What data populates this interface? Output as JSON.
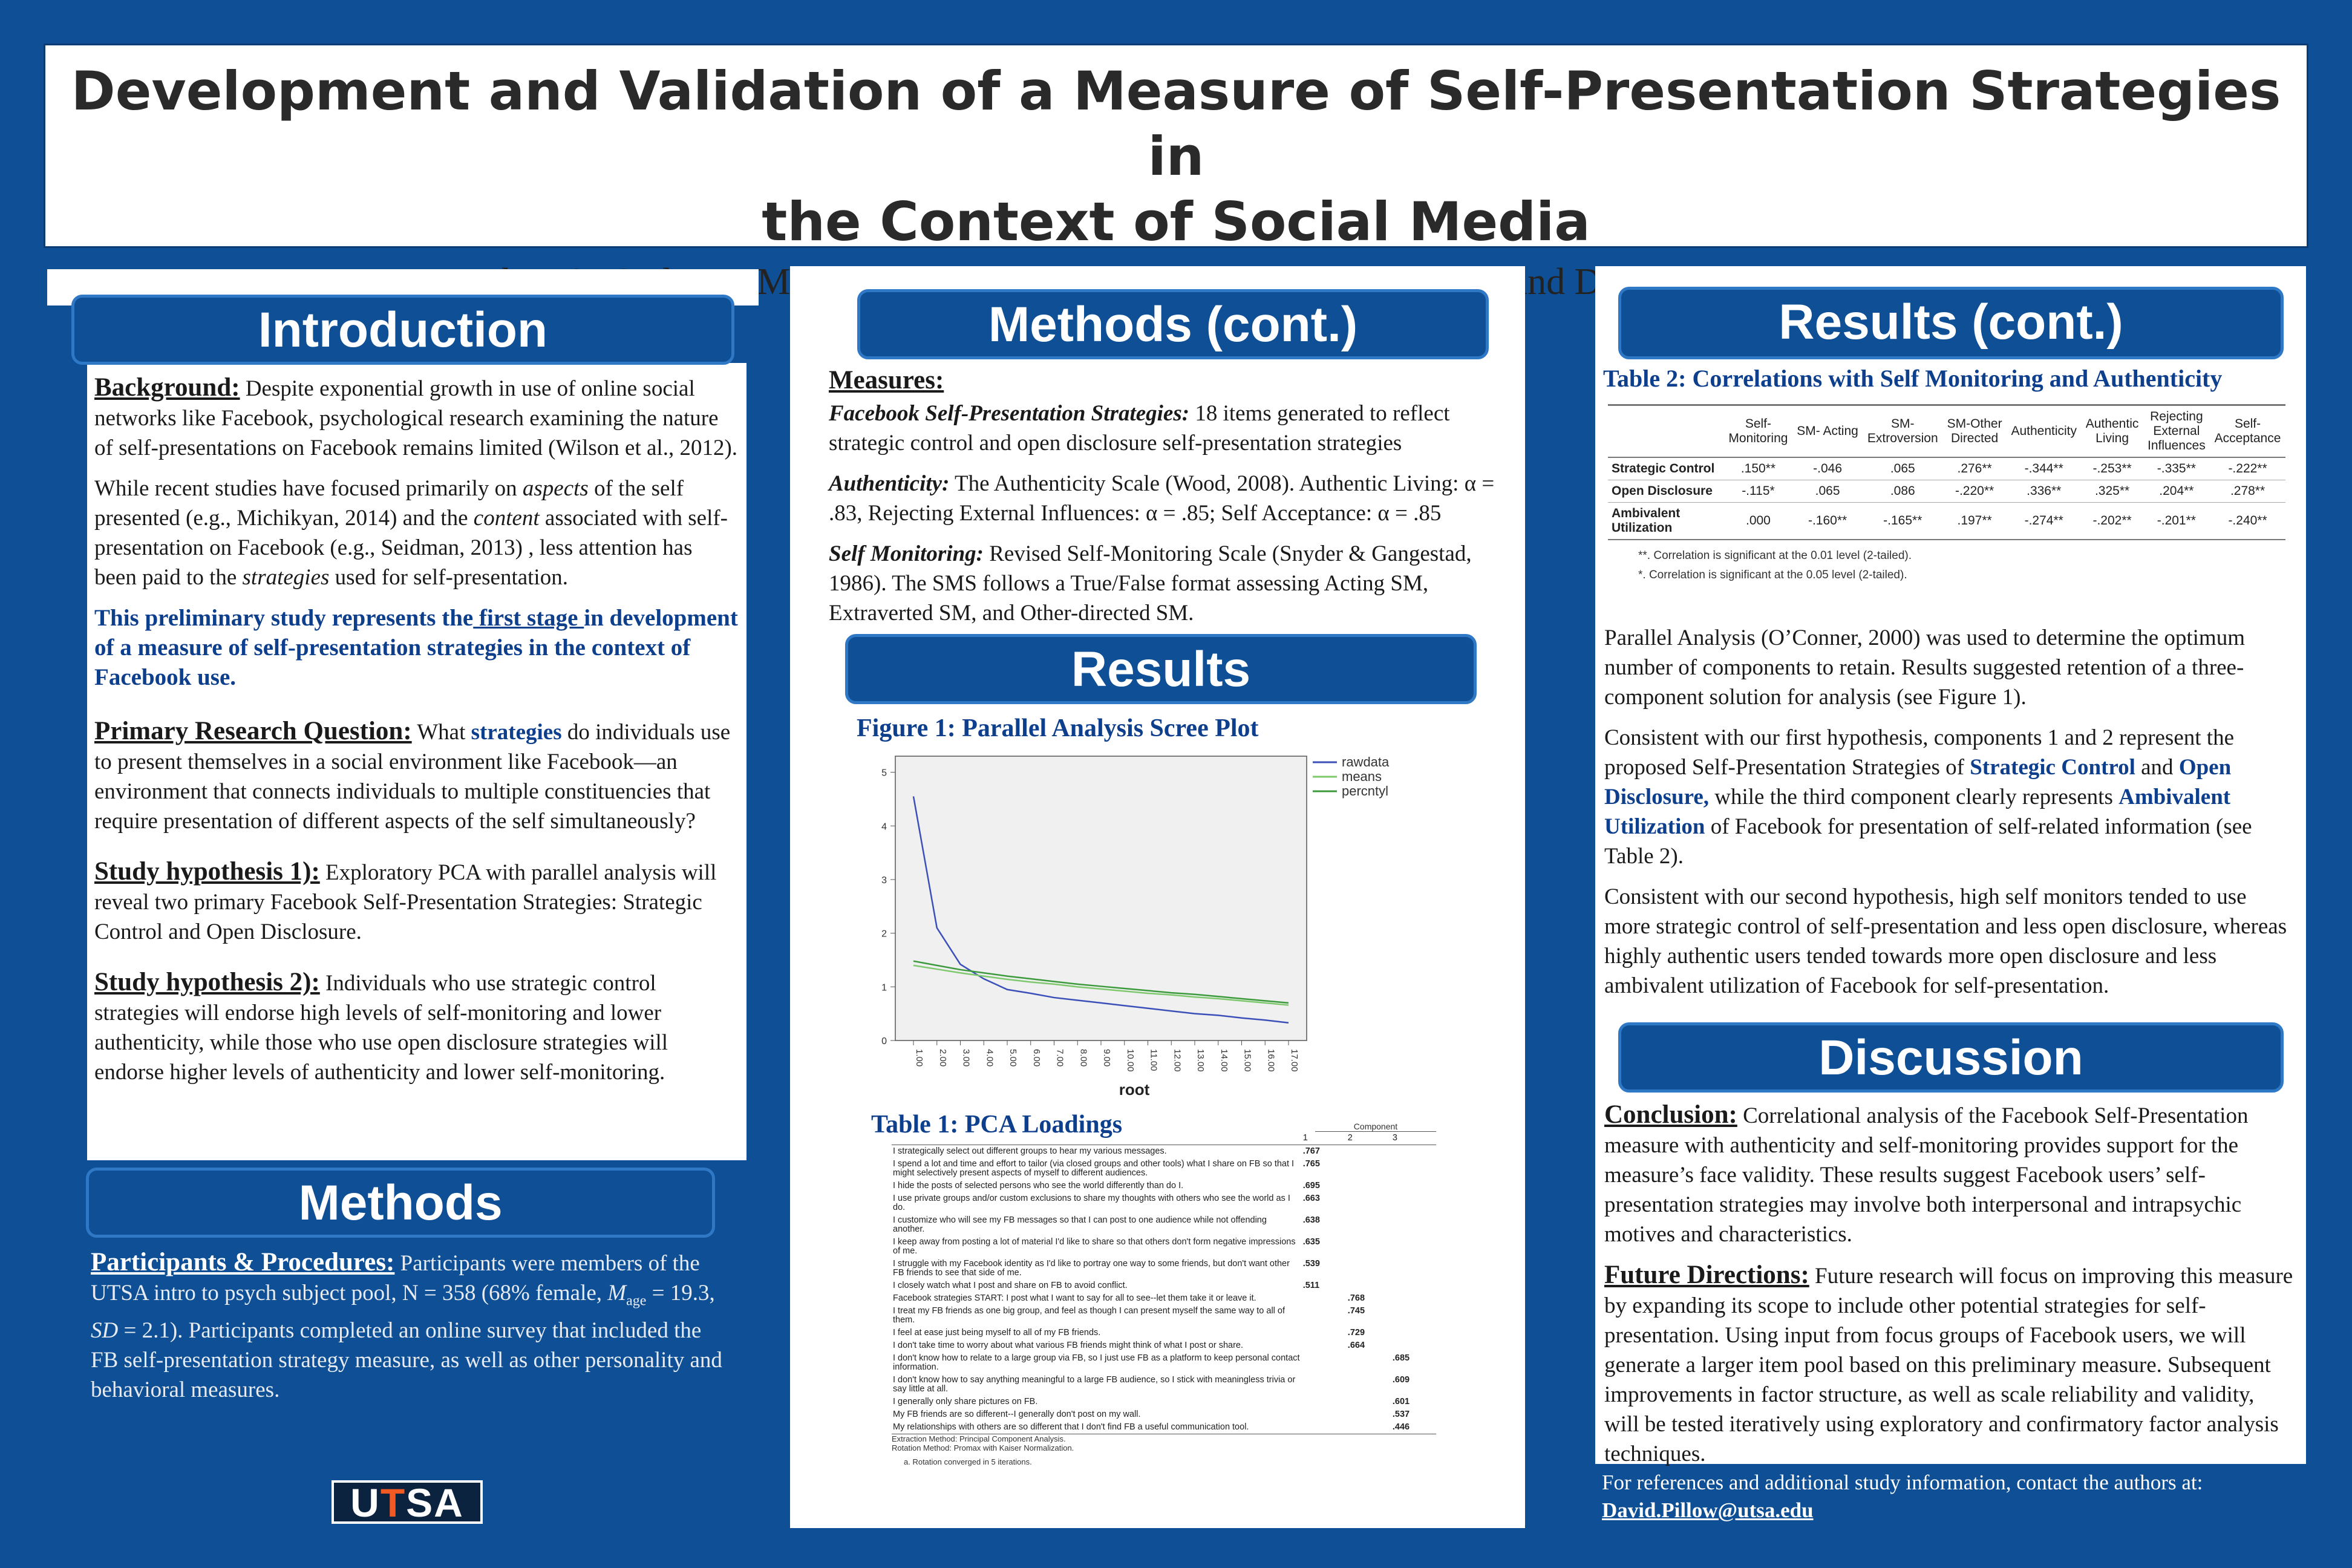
{
  "title": {
    "line1": "Development and Validation of a Measure of Self-Presentation Strategies in",
    "line2": "the Context of Social Media",
    "authors": "Meghan A. Crabtree, MS., Lauren Hernandez, BA., Willie Hale, Ph.D., and David R. Pillow, Ph.D."
  },
  "introduction": {
    "header": "Introduction",
    "background_lead": "Background:",
    "background_text": " Despite exponential growth in use of online social networks like Facebook, psychological research examining the nature of self-presentations on Facebook remains limited (Wilson et al., 2012).",
    "para2_a": "While recent studies have focused primarily on ",
    "para2_b": "aspects",
    "para2_c": " of the self presented  (e.g., Michikyan, 2014) and the ",
    "para2_d": "content",
    "para2_e": " associated with self-presentation on Facebook (e.g., Seidman, 2013) , less attention has been paid to the ",
    "para2_f": "strategies",
    "para2_g": " used for self-presentation.",
    "stage_a": "This preliminary study represents the",
    "stage_b": " first stage ",
    "stage_c": "in development of a measure of self-presentation strategies in the context of Facebook use.",
    "rq_lead": "Primary Research Question:",
    "rq_a": " What ",
    "rq_b": "strategies",
    "rq_c": " do individuals use to present themselves in a social environment like Facebook—an environment that connects individuals to multiple constituencies that require presentation of different aspects of the self simultaneously?",
    "h1_lead": "Study hypothesis 1):",
    "h1_text": " Exploratory PCA with parallel analysis will reveal two primary Facebook Self-Presentation Strategies: Strategic Control and Open Disclosure.",
    "h2_lead": "Study hypothesis 2):",
    "h2_text": "  Individuals who use strategic control strategies will endorse high levels of self-monitoring and lower authenticity, while those who use open disclosure strategies will endorse higher levels of authenticity and lower self-monitoring."
  },
  "methods": {
    "header": "Methods",
    "lead": "Participants & Procedures:",
    "text_a": " Participants were members of the UTSA intro to psych subject pool, N = 358 (68% female, ",
    "m": "M",
    "age": "age",
    "text_b": " = 19.3, ",
    "sd": "SD",
    "text_c": " = 2.1). Participants completed an online survey that included the FB self-presentation strategy measure, as well as other personality and behavioral measures."
  },
  "logo": {
    "u": "U",
    "t": "T",
    "sa": "SA"
  },
  "methods_cont": {
    "header": "Methods (cont.)",
    "measures": "Measures:",
    "fb_lead": "Facebook Self-Presentation Strategies:",
    "fb_text": " 18 items generated to reflect strategic control and open disclosure self-presentation strategies",
    "auth_lead": "Authenticity:",
    "auth_text": " The Authenticity Scale (Wood, 2008).  Authentic Living: α = .83, Rejecting External Influences: α = .85; Self Acceptance: α = .85",
    "sm_lead": "Self Monitoring:",
    "sm_text": " Revised Self-Monitoring Scale (Snyder & Gangestad, 1986). The SMS follows a True/False format assessing Acting SM, Extraverted SM, and Other-directed SM."
  },
  "results": {
    "header": "Results",
    "fig1_title": "Figure 1: Parallel Analysis Scree Plot",
    "table1_title": "Table 1: PCA Loadings"
  },
  "chart_data": {
    "type": "line",
    "title": "",
    "xlabel": "root",
    "ylabel": "",
    "x": [
      "1.00",
      "2.00",
      "3.00",
      "4.00",
      "5.00",
      "6.00",
      "7.00",
      "8.00",
      "9.00",
      "10.00",
      "11.00",
      "12.00",
      "13.00",
      "14.00",
      "15.00",
      "16.00",
      "17.00"
    ],
    "yticks": [
      0,
      1,
      2,
      3,
      4,
      5
    ],
    "ylim": [
      0,
      5.3
    ],
    "legend_position": "top-right",
    "series": [
      {
        "name": "rawdata",
        "color": "#3b4fb8",
        "values": [
          4.55,
          2.1,
          1.42,
          1.15,
          0.95,
          0.88,
          0.8,
          0.75,
          0.7,
          0.65,
          0.6,
          0.55,
          0.5,
          0.47,
          0.42,
          0.38,
          0.33
        ]
      },
      {
        "name": "means",
        "color": "#7ec86e",
        "values": [
          1.4,
          1.33,
          1.26,
          1.2,
          1.14,
          1.09,
          1.05,
          1.0,
          0.96,
          0.92,
          0.88,
          0.85,
          0.81,
          0.78,
          0.74,
          0.7,
          0.66
        ]
      },
      {
        "name": "percntyl",
        "color": "#3b9a3b",
        "values": [
          1.48,
          1.4,
          1.32,
          1.26,
          1.2,
          1.15,
          1.1,
          1.05,
          1.01,
          0.97,
          0.93,
          0.89,
          0.86,
          0.82,
          0.78,
          0.74,
          0.7
        ]
      }
    ]
  },
  "table1": {
    "component_label": "Component",
    "cols": [
      "1",
      "2",
      "3"
    ],
    "rows": [
      {
        "item": "I strategically select out different groups to hear my various messages.",
        "c": [
          ".767",
          "",
          ""
        ]
      },
      {
        "item": "I spend a lot and time and effort to tailor (via closed groups and other tools) what I share on FB so that I might selectively present aspects of myself to different audiences.",
        "c": [
          ".765",
          "",
          ""
        ]
      },
      {
        "item": "I hide the posts of selected persons who see the world differently than do I.",
        "c": [
          ".695",
          "",
          ""
        ]
      },
      {
        "item": "I use private groups and/or custom exclusions to share my thoughts with others who see the world as I do.",
        "c": [
          ".663",
          "",
          ""
        ]
      },
      {
        "item": "I customize who will see my FB messages so that I can post to one audience while not offending another.",
        "c": [
          ".638",
          "",
          ""
        ]
      },
      {
        "item": "I keep away from posting a lot of material I'd like to share so that others don't form negative impressions of me.",
        "c": [
          ".635",
          "",
          ""
        ]
      },
      {
        "item": "I struggle with my Facebook identity as I'd like to portray one way to some friends, but don't want other FB friends to see that side of me.",
        "c": [
          ".539",
          "",
          ""
        ]
      },
      {
        "item": "I closely watch what I post and share on FB to avoid conflict.",
        "c": [
          ".511",
          "",
          ""
        ]
      },
      {
        "item": "Facebook strategies START: I post what I want to say for all to see--let them take it or leave it.",
        "c": [
          "",
          ".768",
          ""
        ]
      },
      {
        "item": "I treat my FB friends as one big group, and feel as though I can present myself the same way to all of them.",
        "c": [
          "",
          ".745",
          ""
        ]
      },
      {
        "item": "I feel at ease just being myself to all of my FB friends.",
        "c": [
          "",
          ".729",
          ""
        ]
      },
      {
        "item": "I don't take time to worry about what various FB friends might think of what I post or share.",
        "c": [
          "",
          ".664",
          ""
        ]
      },
      {
        "item": "I don't know how to relate to a large group via FB, so I just use FB as a platform to keep personal contact information.",
        "c": [
          "",
          "",
          ".685"
        ]
      },
      {
        "item": "I don't know how to say anything meaningful to a large FB audience, so I stick with meaningless trivia or say little at all.",
        "c": [
          "",
          "",
          ".609"
        ]
      },
      {
        "item": "I generally only share pictures on FB.",
        "c": [
          "",
          "",
          ".601"
        ]
      },
      {
        "item": "My FB friends are so different--I generally don't post on my wall.",
        "c": [
          "",
          "",
          ".537"
        ]
      },
      {
        "item": "My relationships with others are so different that I don't find FB a useful communication tool.",
        "c": [
          "",
          "",
          ".446"
        ]
      }
    ],
    "note1": "Extraction Method: Principal Component Analysis.",
    "note2": "Rotation Method: Promax with Kaiser Normalization.",
    "note3": "a. Rotation converged in 5 iterations."
  },
  "results_cont": {
    "header": "Results (cont.)",
    "table2_title": "Table 2: Correlations with Self Monitoring and Authenticity",
    "table2_cols": [
      "Self-\nMonitoring",
      "SM- Acting",
      "SM-\nExtroversion",
      "SM-Other\nDirected",
      "Authenticity",
      "Authentic\nLiving",
      "Rejecting\nExternal\nInfluences",
      "Self-\nAcceptance"
    ],
    "table2_rows": [
      {
        "label": "Strategic Control",
        "vals": [
          ".150**",
          "-.046",
          ".065",
          ".276**",
          "-.344**",
          "-.253**",
          "-.335**",
          "-.222**"
        ]
      },
      {
        "label": "Open Disclosure",
        "vals": [
          "-.115*",
          ".065",
          ".086",
          "-.220**",
          ".336**",
          ".325**",
          ".204**",
          ".278**"
        ]
      },
      {
        "label": "Ambivalent Utilization",
        "vals": [
          ".000",
          "-.160**",
          "-.165**",
          ".197**",
          "-.274**",
          "-.202**",
          "-.201**",
          "-.240**"
        ]
      }
    ],
    "table2_note1": "**. Correlation is significant at the 0.01 level (2-tailed).",
    "table2_note2": "*. Correlation is significant at the 0.05 level (2-tailed).",
    "pa_text": "Parallel Analysis (O’Conner, 2000)  was used to determine the optimum number of components to retain. Results suggested retention of a three-component solution for analysis (see Figure 1).",
    "h1_a": "Consistent with our first hypothesis, components 1 and 2 represent the proposed Self-Presentation Strategies of ",
    "h1_b": "Strategic Control",
    "h1_c": " and ",
    "h1_d": "Open Disclosure,",
    "h1_e": " while the third component clearly represents ",
    "h1_f": "Ambivalent Utilization",
    "h1_g": " of Facebook for presentation of self-related information (see Table 2).",
    "h2_text": "Consistent with our second hypothesis, high self monitors tended to use more strategic control of self-presentation and less open disclosure, whereas highly authentic users tended towards more open disclosure and less ambivalent utilization of Facebook for self-presentation."
  },
  "discussion": {
    "header": "Discussion",
    "concl_lead": "Conclusion:",
    "concl_text": " Correlational analysis of the Facebook Self-Presentation measure with authenticity and self-monitoring provides support for the measure’s face validity. These results suggest Facebook users’ self-presentation strategies may involve both interpersonal and intrapsychic motives and characteristics.",
    "future_lead": "Future Directions:",
    "future_text": "  Future research will focus on improving this measure by expanding its scope to include other potential strategies for self-presentation. Using input from focus groups of Facebook users, we will generate a larger item pool based on this preliminary measure. Subsequent improvements in factor structure, as well as scale reliability and validity, will be tested iteratively using exploratory and confirmatory factor analysis techniques."
  },
  "contact": {
    "text": "For references and additional study information, contact  the authors at:",
    "email": "David.Pillow@utsa.edu"
  }
}
